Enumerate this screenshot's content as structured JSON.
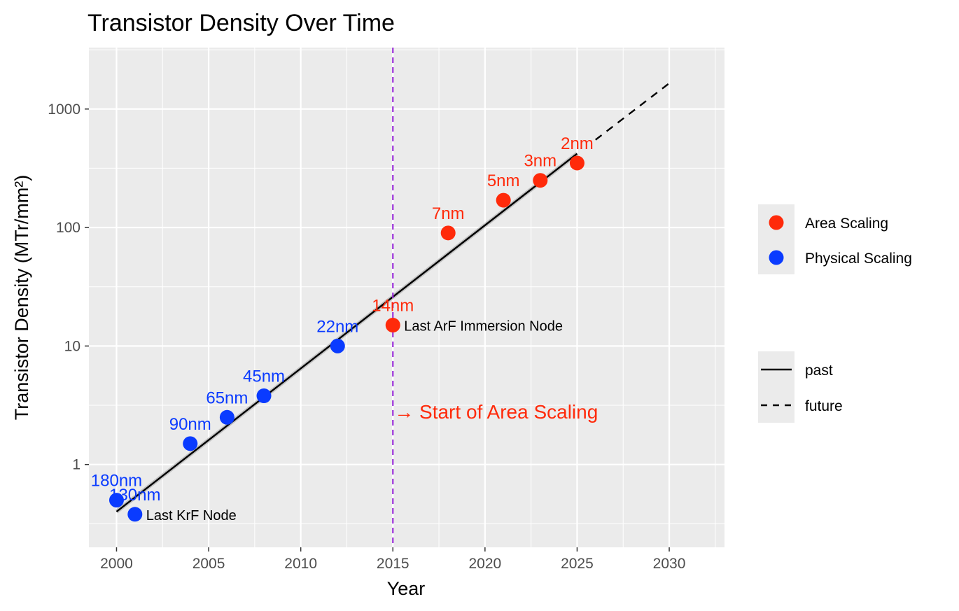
{
  "chart_data": {
    "type": "scatter",
    "title": "Transistor Density Over Time",
    "xlabel": "Year",
    "ylabel": "Transistor Density (MTr/mm²)",
    "x_scale": "linear",
    "y_scale": "log10",
    "xlim": [
      1998.5,
      2033
    ],
    "ylim": [
      0.2,
      3300
    ],
    "x_ticks": [
      2000,
      2005,
      2010,
      2015,
      2020,
      2025,
      2030
    ],
    "x_tick_labels": [
      "2000",
      "2005",
      "2010",
      "2015",
      "2020",
      "2025",
      "2030"
    ],
    "y_ticks": [
      1,
      10,
      100,
      1000
    ],
    "y_tick_labels": [
      "1",
      "10",
      "100",
      "1000"
    ],
    "grid": true,
    "series": [
      {
        "name": "Physical Scaling",
        "color": "#0a3bff",
        "points": [
          {
            "x": 2000,
            "y": 0.5,
            "label": "180nm"
          },
          {
            "x": 2001,
            "y": 0.38,
            "label": "130nm"
          },
          {
            "x": 2004,
            "y": 1.5,
            "label": "90nm"
          },
          {
            "x": 2006,
            "y": 2.5,
            "label": "65nm"
          },
          {
            "x": 2008,
            "y": 3.8,
            "label": "45nm"
          },
          {
            "x": 2012,
            "y": 10,
            "label": "22nm"
          }
        ]
      },
      {
        "name": "Area Scaling",
        "color": "#ff2a0a",
        "points": [
          {
            "x": 2015,
            "y": 15,
            "label": "14nm"
          },
          {
            "x": 2018,
            "y": 90,
            "label": "7nm"
          },
          {
            "x": 2021,
            "y": 170,
            "label": "5nm"
          },
          {
            "x": 2023,
            "y": 250,
            "label": "3nm"
          },
          {
            "x": 2025,
            "y": 350,
            "label": "2nm"
          }
        ]
      }
    ],
    "trend_lines": [
      {
        "name": "past",
        "style": "solid",
        "color": "#000000",
        "x": [
          2000,
          2025
        ],
        "y": [
          0.4,
          420
        ]
      },
      {
        "name": "future",
        "style": "dashed",
        "color": "#000000",
        "x": [
          2026,
          2030
        ],
        "y": [
          550,
          1650
        ]
      }
    ],
    "reference_line": {
      "x": 2015,
      "color": "#9b30d9",
      "style": "dashed"
    },
    "annotations": [
      {
        "text": "Last KrF Node",
        "x": 2001,
        "y": 0.38,
        "color": "#000000"
      },
      {
        "text": "Last ArF Immersion Node",
        "x": 2015,
        "y": 15,
        "color": "#000000"
      },
      {
        "text": "→ Start of Area Scaling",
        "x": 2015,
        "y": 2.8,
        "color": "#ff2a0a"
      }
    ],
    "legends": [
      {
        "kind": "color",
        "placement": "right",
        "entries": [
          {
            "label": "Area Scaling",
            "color": "#ff2a0a"
          },
          {
            "label": "Physical Scaling",
            "color": "#0a3bff"
          }
        ]
      },
      {
        "kind": "linetype",
        "placement": "right",
        "entries": [
          {
            "label": "past",
            "style": "solid"
          },
          {
            "label": "future",
            "style": "dashed"
          }
        ]
      }
    ]
  }
}
